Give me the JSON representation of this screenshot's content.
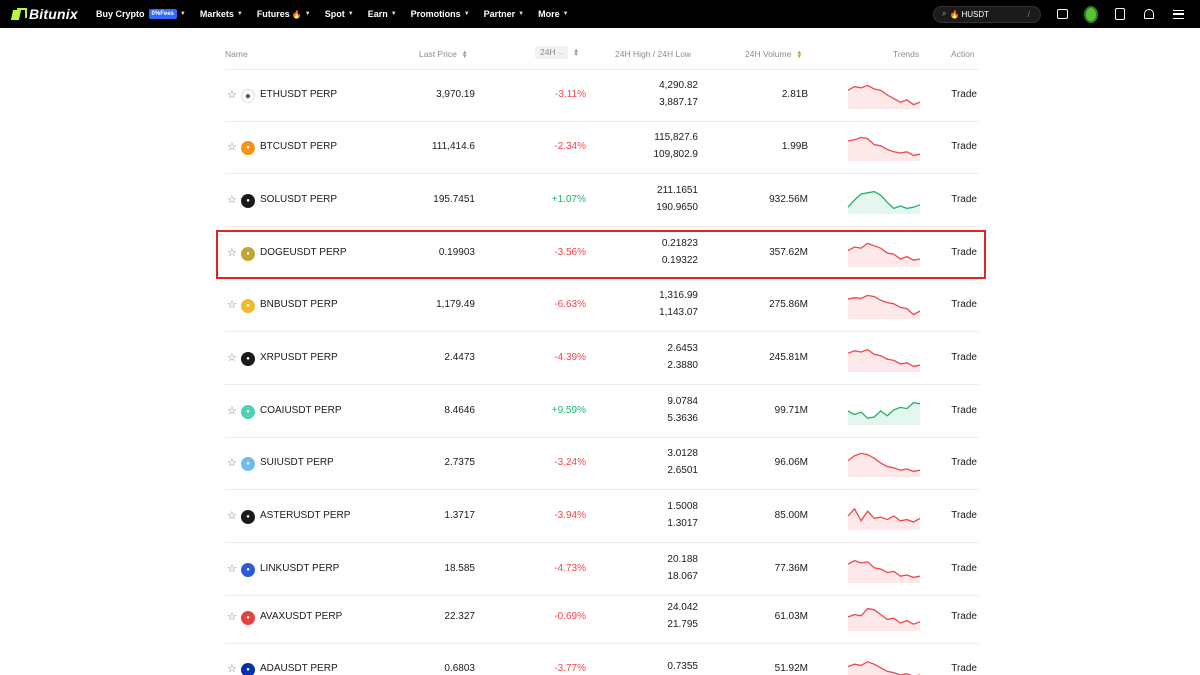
{
  "nav": {
    "logo": "Bitunix",
    "menu": [
      {
        "label": "Buy Crypto",
        "badge": "0%Fees"
      },
      {
        "label": "Markets"
      },
      {
        "label": "Futures",
        "fire": true
      },
      {
        "label": "Spot"
      },
      {
        "label": "Earn"
      },
      {
        "label": "Promotions"
      },
      {
        "label": "Partner"
      },
      {
        "label": "More"
      }
    ],
    "search": {
      "value": "HUSDT",
      "shortcut": "/"
    }
  },
  "table": {
    "headers": {
      "name": "Name",
      "last_price": "Last Price",
      "change": "24H",
      "high_low": "24H High / 24H Low",
      "volume": "24H Volume",
      "trends": "Trends",
      "action": "Action"
    },
    "rows": [
      {
        "symbol": "ETHUSDT PERP",
        "price": "3,970.19",
        "change": "-3.11%",
        "high": "4,290.82",
        "low": "3,887.17",
        "volume": "2.81B",
        "action": "Trade",
        "icon": "ethereum-icon",
        "color": "#ffffff",
        "trend": [
          0.7,
          0.85,
          0.8,
          0.9,
          0.75,
          0.7,
          0.5,
          0.35,
          0.2,
          0.3,
          0.1,
          0.2
        ],
        "dir": "down"
      },
      {
        "symbol": "BTCUSDT PERP",
        "price": "111,414.6",
        "change": "-2.34%",
        "high": "115,827.6",
        "low": "109,802.9",
        "volume": "1.99B",
        "action": "Trade",
        "icon": "bitcoin-icon",
        "color": "#f7931a",
        "trend": [
          0.75,
          0.8,
          0.9,
          0.85,
          0.6,
          0.55,
          0.4,
          0.3,
          0.25,
          0.3,
          0.15,
          0.2
        ],
        "dir": "down"
      },
      {
        "symbol": "SOLUSDT PERP",
        "price": "195.7451",
        "change": "+1.07%",
        "high": "211.1651",
        "low": "190.9650",
        "volume": "932.56M",
        "action": "Trade",
        "icon": "solana-icon",
        "color": "#1a1a1a",
        "trend": [
          0.2,
          0.5,
          0.75,
          0.8,
          0.85,
          0.7,
          0.4,
          0.15,
          0.25,
          0.15,
          0.2,
          0.3
        ],
        "dir": "up"
      },
      {
        "symbol": "DOGEUSDT PERP",
        "price": "0.19903",
        "change": "-3.56%",
        "high": "0.21823",
        "low": "0.19322",
        "volume": "357.62M",
        "action": "Trade",
        "icon": "dogecoin-icon",
        "color": "#c2a633",
        "trend": [
          0.6,
          0.75,
          0.7,
          0.9,
          0.8,
          0.7,
          0.5,
          0.45,
          0.25,
          0.35,
          0.2,
          0.25
        ],
        "dir": "down"
      },
      {
        "symbol": "BNBUSDT PERP",
        "price": "1,179.49",
        "change": "-6.63%",
        "high": "1,316.99",
        "low": "1,143.07",
        "volume": "275.86M",
        "action": "Trade",
        "icon": "bnb-icon",
        "color": "#f3ba2f",
        "trend": [
          0.75,
          0.8,
          0.78,
          0.9,
          0.85,
          0.7,
          0.6,
          0.55,
          0.4,
          0.35,
          0.1,
          0.25
        ],
        "dir": "down"
      },
      {
        "symbol": "XRPUSDT PERP",
        "price": "2.4473",
        "change": "-4.39%",
        "high": "2.6453",
        "low": "2.3880",
        "volume": "245.81M",
        "action": "Trade",
        "icon": "xrp-icon",
        "color": "#1a1a1a",
        "trend": [
          0.7,
          0.8,
          0.75,
          0.85,
          0.65,
          0.6,
          0.45,
          0.4,
          0.25,
          0.3,
          0.15,
          0.2
        ],
        "dir": "down"
      },
      {
        "symbol": "COAIUSDT PERP",
        "price": "8.4646",
        "change": "+9.59%",
        "high": "9.0784",
        "low": "5.3636",
        "volume": "99.71M",
        "action": "Trade",
        "icon": "coai-icon",
        "color": "#4fd1b5",
        "trend": [
          0.5,
          0.35,
          0.45,
          0.2,
          0.25,
          0.5,
          0.3,
          0.55,
          0.65,
          0.6,
          0.85,
          0.8
        ],
        "dir": "up"
      },
      {
        "symbol": "SUIUSDT PERP",
        "price": "2.7375",
        "change": "-3.24%",
        "high": "3.0128",
        "low": "2.6501",
        "volume": "96.06M",
        "action": "Trade",
        "icon": "sui-icon",
        "color": "#6fbcf0",
        "trend": [
          0.6,
          0.8,
          0.9,
          0.85,
          0.7,
          0.5,
          0.35,
          0.3,
          0.2,
          0.25,
          0.15,
          0.2
        ],
        "dir": "down"
      },
      {
        "symbol": "ASTERUSDT PERP",
        "price": "1.3717",
        "change": "-3.94%",
        "high": "1.5008",
        "low": "1.3017",
        "volume": "85.00M",
        "action": "Trade",
        "icon": "aster-icon",
        "color": "#1a1a1a",
        "trend": [
          0.5,
          0.8,
          0.3,
          0.7,
          0.4,
          0.45,
          0.35,
          0.5,
          0.3,
          0.35,
          0.25,
          0.4
        ],
        "dir": "down"
      },
      {
        "symbol": "LINKUSDT PERP",
        "price": "18.585",
        "change": "-4.73%",
        "high": "20.188",
        "low": "18.067",
        "volume": "77.36M",
        "action": "Trade",
        "icon": "chainlink-icon",
        "color": "#2a5ada",
        "trend": [
          0.7,
          0.85,
          0.75,
          0.8,
          0.55,
          0.5,
          0.35,
          0.4,
          0.2,
          0.25,
          0.15,
          0.2
        ],
        "dir": "down"
      },
      {
        "symbol": "AVAXUSDT PERP",
        "price": "22.327",
        "change": "-0.69%",
        "high": "24.042",
        "low": "21.795",
        "volume": "61.03M",
        "action": "Trade",
        "icon": "avalanche-icon",
        "color": "#e84142",
        "trend": [
          0.5,
          0.6,
          0.55,
          0.85,
          0.8,
          0.6,
          0.4,
          0.45,
          0.25,
          0.35,
          0.2,
          0.3
        ],
        "dir": "down"
      },
      {
        "symbol": "ADAUSDT PERP",
        "price": "0.6803",
        "change": "-3.77%",
        "high": "0.7355",
        "low": "",
        "volume": "51.92M",
        "action": "Trade",
        "icon": "cardano-icon",
        "color": "#0033ad",
        "trend": [
          0.6,
          0.7,
          0.65,
          0.8,
          0.7,
          0.55,
          0.4,
          0.35,
          0.25,
          0.3,
          0.2,
          0.25
        ],
        "dir": "down"
      }
    ]
  },
  "colors": {
    "up": "#23b26d",
    "down": "#f0464b",
    "highlight": "#e02424"
  }
}
